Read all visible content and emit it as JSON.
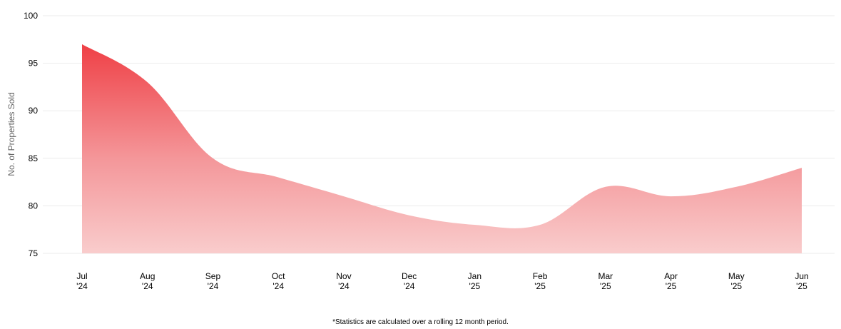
{
  "chart_data": {
    "type": "area",
    "ylabel": "No. of Properties Sold",
    "ylim": [
      75,
      100
    ],
    "yticks": [
      "75",
      "80",
      "85",
      "90",
      "95",
      "100"
    ],
    "categories": [
      [
        "Jul",
        "'24"
      ],
      [
        "Aug",
        "'24"
      ],
      [
        "Sep",
        "'24"
      ],
      [
        "Oct",
        "'24"
      ],
      [
        "Nov",
        "'24"
      ],
      [
        "Dec",
        "'24"
      ],
      [
        "Jan",
        "'25"
      ],
      [
        "Feb",
        "'25"
      ],
      [
        "Mar",
        "'25"
      ],
      [
        "Apr",
        "'25"
      ],
      [
        "May",
        "'25"
      ],
      [
        "Jun",
        "'25"
      ]
    ],
    "values": [
      97,
      93,
      85,
      83,
      81,
      79,
      78,
      78,
      82,
      81,
      82,
      84
    ],
    "grid": true,
    "colors": {
      "top": "#ef4046",
      "bottom": "#f9cccc",
      "grid": "#ebebeb"
    }
  },
  "footnote": "*Statistics are calculated over a rolling 12 month period."
}
